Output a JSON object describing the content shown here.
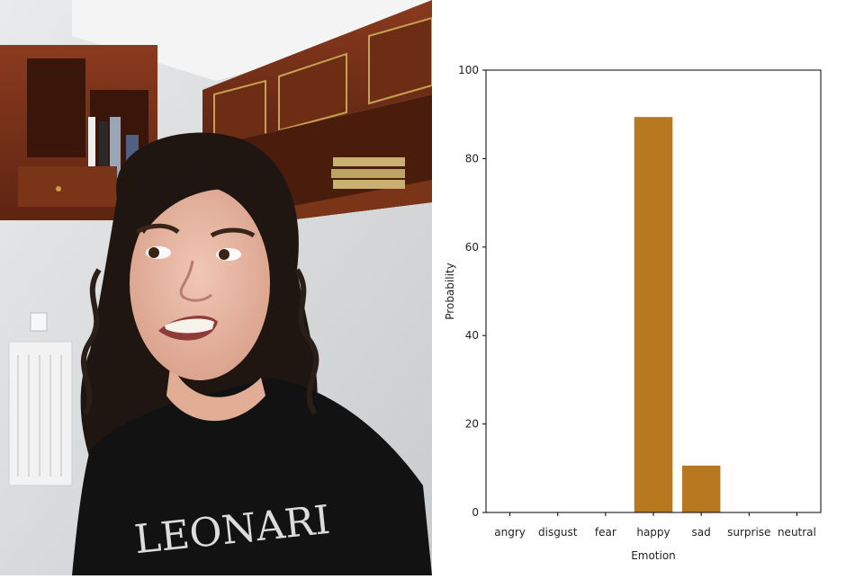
{
  "photo": {
    "subject": "person-with-disgust-expression",
    "shirt_text": "LEONARI"
  },
  "chart_data": {
    "type": "bar",
    "categories": [
      "angry",
      "disgust",
      "fear",
      "happy",
      "sad",
      "surprise",
      "neutral"
    ],
    "values": [
      0,
      0,
      0,
      89.4,
      10.6,
      0,
      0
    ],
    "xlabel": "Emotion",
    "ylabel": "Probability",
    "ylim": [
      0,
      100
    ],
    "yticks": [
      0,
      20,
      40,
      60,
      80,
      100
    ],
    "bar_color": "#b87820",
    "grid": false
  }
}
